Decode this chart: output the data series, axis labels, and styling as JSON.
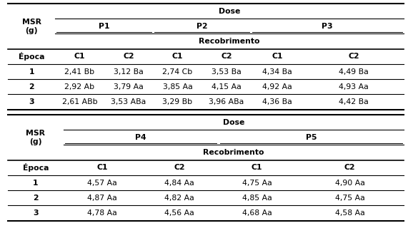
{
  "figsize": [
    5.71,
    3.27
  ],
  "dpi": 100,
  "bg_color": "#ffffff",
  "table1": {
    "data_rows": [
      [
        "1",
        "2,41 Bb",
        "3,12 Ba",
        "2,74 Cb",
        "3,53 Ba",
        "4,34 Ba",
        "4,49 Ba"
      ],
      [
        "2",
        "2,92 Ab",
        "3,79 Aa",
        "3,85 Aa",
        "4,15 Aa",
        "4,92 Aa",
        "4,93 Aa"
      ],
      [
        "3",
        "2,61 ABb",
        "3,53 ABa",
        "3,29 Bb",
        "3,96 ABa",
        "4,36 Ba",
        "4,42 Ba"
      ]
    ]
  },
  "table2": {
    "data_rows": [
      [
        "1",
        "4,57 Aa",
        "4,84 Aa",
        "4,75 Aa",
        "4,90 Aa"
      ],
      [
        "2",
        "4,87 Aa",
        "4,82 Aa",
        "4,85 Aa",
        "4,75 Aa"
      ],
      [
        "3",
        "4,78 Aa",
        "4,56 Aa",
        "4,68 Aa",
        "4,58 Aa"
      ]
    ]
  }
}
